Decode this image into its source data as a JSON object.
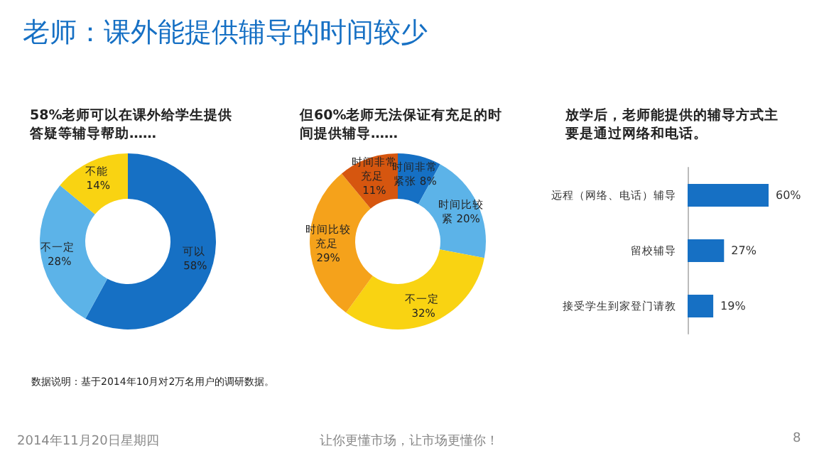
{
  "chart_data": [
    {
      "type": "donut",
      "title": "58%老师可以在课外给学生提供答疑等辅导帮助……",
      "annotations": [
        "老师：课外能提供辅导的时间较少"
      ],
      "categories": [
        "可以",
        "不一定",
        "不能"
      ],
      "values": [
        58,
        28,
        14
      ],
      "value_labels": [
        "58%",
        "28%",
        "14%"
      ],
      "colors": [
        "#1670c4",
        "#5cb3e8",
        "#f9d312"
      ],
      "legend": false
    },
    {
      "type": "donut",
      "title": "但60%老师无法保证有充足的时间提供辅导……",
      "categories": [
        "时间非常紧张",
        "时间比较紧",
        "不一定",
        "时间比较充足",
        "时间非常充足"
      ],
      "values": [
        8,
        20,
        32,
        29,
        11
      ],
      "value_labels": [
        "8%",
        "20%",
        "32%",
        "29%",
        "11%"
      ],
      "colors": [
        "#1670c4",
        "#5cb3e8",
        "#f9d312",
        "#f5a21b",
        "#d6560f"
      ],
      "legend": false
    },
    {
      "type": "bar",
      "orientation": "horizontal",
      "title": "放学后，老师能提供的辅导方式主要是通过网络和电话。",
      "annotations": [
        "数据说明：基于2014年10月对2万名用户的调研数据。",
        "2014年11月20日星期四",
        "让你更懂市场，让市场更懂你！",
        "8"
      ],
      "categories": [
        "远程（网络、电话）辅导",
        "留校辅导",
        "接受学生到家登门请教"
      ],
      "values": [
        60,
        27,
        19
      ],
      "value_labels": [
        "60%",
        "27%",
        "19%"
      ],
      "color": "#1670c4",
      "legend": false
    }
  ]
}
